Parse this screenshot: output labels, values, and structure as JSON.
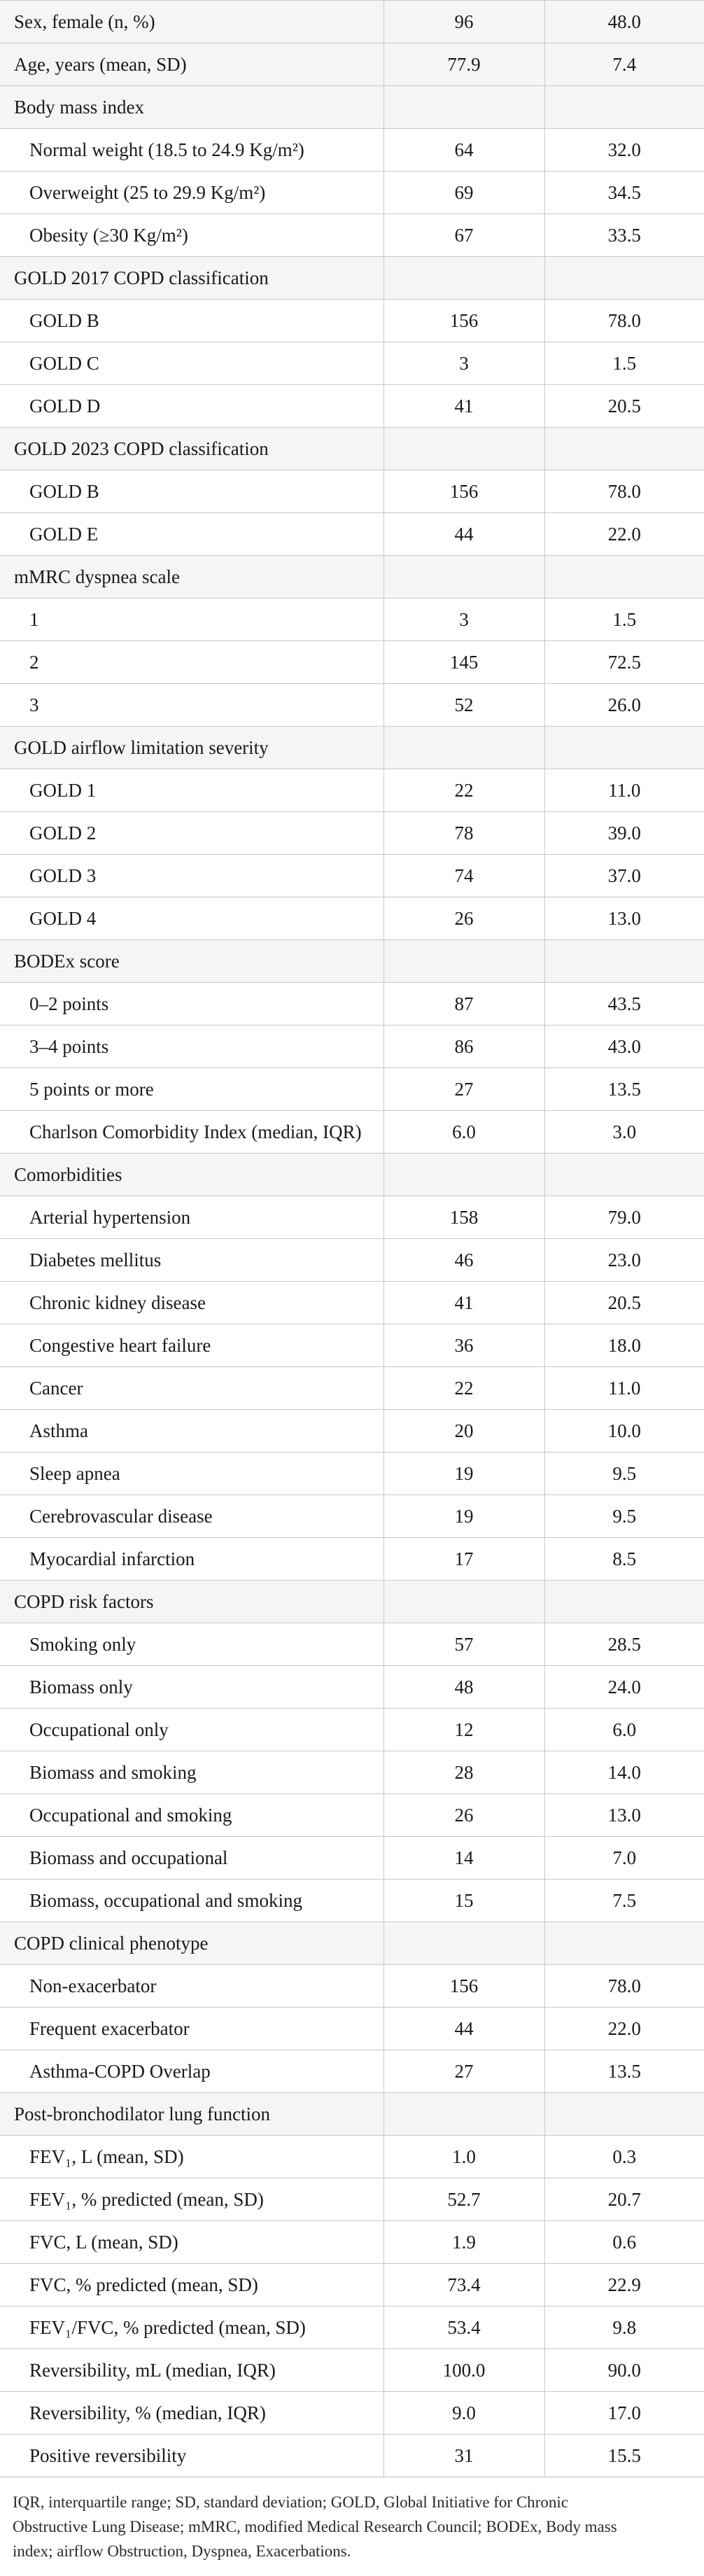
{
  "table": {
    "rows": [
      {
        "label": "Sex, female (n, %)",
        "value1": "96",
        "value2": "48.0",
        "type": "header",
        "indent": false
      },
      {
        "label": "Age, years (mean, SD)",
        "value1": "77.9",
        "value2": "7.4",
        "type": "header",
        "indent": false
      },
      {
        "label": "Body mass index",
        "value1": "",
        "value2": "",
        "type": "header",
        "indent": false
      },
      {
        "label": "Normal weight (18.5 to 24.9 Kg/m²)",
        "value1": "64",
        "value2": "32.0",
        "type": "item",
        "indent": true
      },
      {
        "label": "Overweight (25 to 29.9 Kg/m²)",
        "value1": "69",
        "value2": "34.5",
        "type": "item",
        "indent": true
      },
      {
        "label": "Obesity (≥30 Kg/m²)",
        "value1": "67",
        "value2": "33.5",
        "type": "item",
        "indent": true
      },
      {
        "label": "GOLD 2017 COPD classification",
        "value1": "",
        "value2": "",
        "type": "header",
        "indent": false
      },
      {
        "label": "GOLD B",
        "value1": "156",
        "value2": "78.0",
        "type": "item",
        "indent": true
      },
      {
        "label": "GOLD C",
        "value1": "3",
        "value2": "1.5",
        "type": "item",
        "indent": true
      },
      {
        "label": "GOLD D",
        "value1": "41",
        "value2": "20.5",
        "type": "item",
        "indent": true
      },
      {
        "label": "GOLD 2023 COPD classification",
        "value1": "",
        "value2": "",
        "type": "header",
        "indent": false
      },
      {
        "label": "GOLD B",
        "value1": "156",
        "value2": "78.0",
        "type": "item",
        "indent": true
      },
      {
        "label": "GOLD E",
        "value1": "44",
        "value2": "22.0",
        "type": "item",
        "indent": true
      },
      {
        "label": "mMRC dyspnea scale",
        "value1": "",
        "value2": "",
        "type": "header",
        "indent": false
      },
      {
        "label": "1",
        "value1": "3",
        "value2": "1.5",
        "type": "item",
        "indent": true
      },
      {
        "label": "2",
        "value1": "145",
        "value2": "72.5",
        "type": "item",
        "indent": true
      },
      {
        "label": "3",
        "value1": "52",
        "value2": "26.0",
        "type": "item",
        "indent": true
      },
      {
        "label": "GOLD airflow limitation severity",
        "value1": "",
        "value2": "",
        "type": "header",
        "indent": false
      },
      {
        "label": "GOLD 1",
        "value1": "22",
        "value2": "11.0",
        "type": "item",
        "indent": true
      },
      {
        "label": "GOLD 2",
        "value1": "78",
        "value2": "39.0",
        "type": "item",
        "indent": true
      },
      {
        "label": "GOLD 3",
        "value1": "74",
        "value2": "37.0",
        "type": "item",
        "indent": true
      },
      {
        "label": "GOLD 4",
        "value1": "26",
        "value2": "13.0",
        "type": "item",
        "indent": true
      },
      {
        "label": "BODEx score",
        "value1": "",
        "value2": "",
        "type": "header",
        "indent": false
      },
      {
        "label": "0–2 points",
        "value1": "87",
        "value2": "43.5",
        "type": "item",
        "indent": true
      },
      {
        "label": "3–4 points",
        "value1": "86",
        "value2": "43.0",
        "type": "item",
        "indent": true
      },
      {
        "label": "5 points or more",
        "value1": "27",
        "value2": "13.5",
        "type": "item",
        "indent": true
      },
      {
        "label": "Charlson Comorbidity Index (median, IQR)",
        "value1": "6.0",
        "value2": "3.0",
        "type": "item",
        "indent": true
      },
      {
        "label": "Comorbidities",
        "value1": "",
        "value2": "",
        "type": "header",
        "indent": false
      },
      {
        "label": "Arterial hypertension",
        "value1": "158",
        "value2": "79.0",
        "type": "item",
        "indent": true
      },
      {
        "label": "Diabetes mellitus",
        "value1": "46",
        "value2": "23.0",
        "type": "item",
        "indent": true
      },
      {
        "label": "Chronic kidney disease",
        "value1": "41",
        "value2": "20.5",
        "type": "item",
        "indent": true
      },
      {
        "label": "Congestive heart failure",
        "value1": "36",
        "value2": "18.0",
        "type": "item",
        "indent": true
      },
      {
        "label": "Cancer",
        "value1": "22",
        "value2": "11.0",
        "type": "item",
        "indent": true
      },
      {
        "label": "Asthma",
        "value1": "20",
        "value2": "10.0",
        "type": "item",
        "indent": true
      },
      {
        "label": "Sleep apnea",
        "value1": "19",
        "value2": "9.5",
        "type": "item",
        "indent": true
      },
      {
        "label": "Cerebrovascular disease",
        "value1": "19",
        "value2": "9.5",
        "type": "item",
        "indent": true
      },
      {
        "label": "Myocardial infarction",
        "value1": "17",
        "value2": "8.5",
        "type": "item",
        "indent": true
      },
      {
        "label": "COPD risk factors",
        "value1": "",
        "value2": "",
        "type": "header",
        "indent": false
      },
      {
        "label": "Smoking only",
        "value1": "57",
        "value2": "28.5",
        "type": "item",
        "indent": true
      },
      {
        "label": "Biomass only",
        "value1": "48",
        "value2": "24.0",
        "type": "item",
        "indent": true
      },
      {
        "label": "Occupational only",
        "value1": "12",
        "value2": "6.0",
        "type": "item",
        "indent": true
      },
      {
        "label": "Biomass and smoking",
        "value1": "28",
        "value2": "14.0",
        "type": "item",
        "indent": true
      },
      {
        "label": "Occupational and smoking",
        "value1": "26",
        "value2": "13.0",
        "type": "item",
        "indent": true
      },
      {
        "label": "Biomass and occupational",
        "value1": "14",
        "value2": "7.0",
        "type": "item",
        "indent": true
      },
      {
        "label": "Biomass, occupational and smoking",
        "value1": "15",
        "value2": "7.5",
        "type": "item",
        "indent": true
      },
      {
        "label": "COPD clinical phenotype",
        "value1": "",
        "value2": "",
        "type": "header",
        "indent": false
      },
      {
        "label": "Non-exacerbator",
        "value1": "156",
        "value2": "78.0",
        "type": "item",
        "indent": true
      },
      {
        "label": "Frequent exacerbator",
        "value1": "44",
        "value2": "22.0",
        "type": "item",
        "indent": true
      },
      {
        "label": "Asthma-COPD Overlap",
        "value1": "27",
        "value2": "13.5",
        "type": "item",
        "indent": true
      },
      {
        "label": "Post-bronchodilator lung function",
        "value1": "",
        "value2": "",
        "type": "header",
        "indent": false
      },
      {
        "label": "FEV₁, L (mean, SD)",
        "value1": "1.0",
        "value2": "0.3",
        "type": "item",
        "indent": true
      },
      {
        "label": "FEV₁, % predicted (mean, SD)",
        "value1": "52.7",
        "value2": "20.7",
        "type": "item",
        "indent": true
      },
      {
        "label": "FVC, L (mean, SD)",
        "value1": "1.9",
        "value2": "0.6",
        "type": "item",
        "indent": true
      },
      {
        "label": "FVC, % predicted (mean, SD)",
        "value1": "73.4",
        "value2": "22.9",
        "type": "item",
        "indent": true
      },
      {
        "label": "FEV₁/FVC, % predicted (mean, SD)",
        "value1": "53.4",
        "value2": "9.8",
        "type": "item",
        "indent": true
      },
      {
        "label": "Reversibility, mL (median, IQR)",
        "value1": "100.0",
        "value2": "90.0",
        "type": "item",
        "indent": true
      },
      {
        "label": "Reversibility, % (median, IQR)",
        "value1": "9.0",
        "value2": "17.0",
        "type": "item",
        "indent": true
      },
      {
        "label": "Positive reversibility",
        "value1": "31",
        "value2": "15.5",
        "type": "item",
        "indent": true
      }
    ]
  },
  "footnote": {
    "line1": "IQR, interquartile range; SD, standard deviation; GOLD, Global Initiative for Chronic",
    "line2": "Obstructive Lung Disease; mMRC, modified Medical Research Council; BODEx, Body mass",
    "line3": "index; airflow Obstruction, Dyspnea, Exacerbations."
  }
}
